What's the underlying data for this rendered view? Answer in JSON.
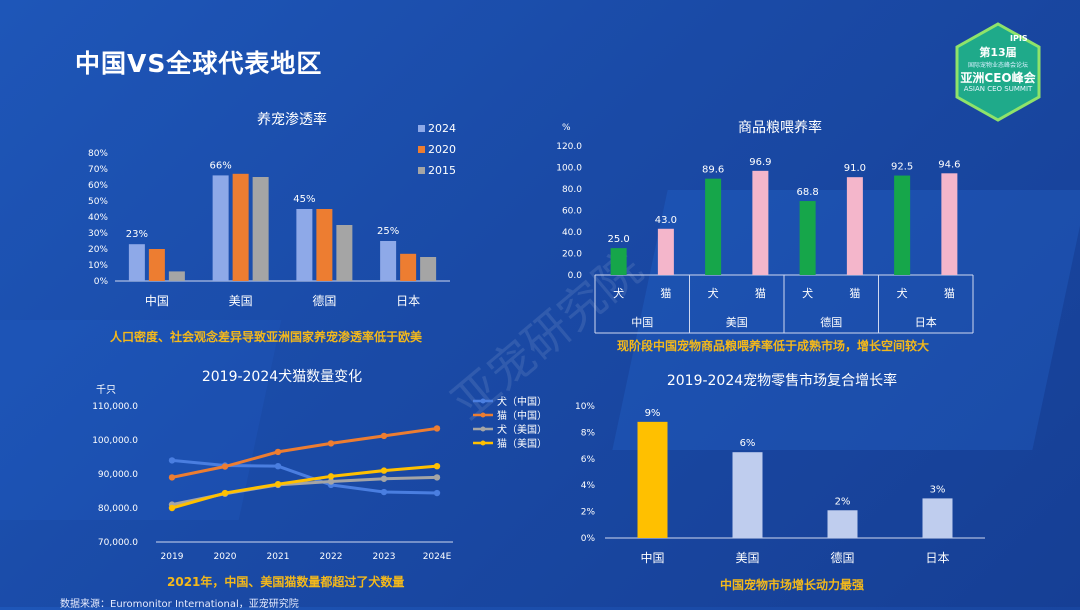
{
  "page": {
    "title": "中国VS全球代表地区",
    "logo": {
      "brand": "IPIS",
      "line1": "第13届",
      "line2": "国际宠物业态峰会论坛",
      "line3": "亚洲CEO峰会",
      "line4": "ASIAN CEO SUMMIT"
    },
    "watermark": "亚宠研究院",
    "source": "数据来源：Euromonitor International，亚宠研究院"
  },
  "colors": {
    "c2024": "#8ea9e8",
    "c2020": "#ed7d31",
    "c2015": "#a5a5a5",
    "dog": "#16a64a",
    "cat": "#f4b6cb",
    "yellow": "#ffc000",
    "lightblue": "#bfcdee",
    "note": "#f3b81b"
  },
  "chart_data": [
    {
      "id": "penetration",
      "type": "bar",
      "title": "养宠渗透率",
      "categories": [
        "中国",
        "美国",
        "德国",
        "日本"
      ],
      "series": [
        {
          "name": "2024",
          "values": [
            23,
            66,
            45,
            25
          ]
        },
        {
          "name": "2020",
          "values": [
            20,
            67,
            45,
            17
          ]
        },
        {
          "name": "2015",
          "values": [
            6,
            65,
            35,
            15
          ]
        }
      ],
      "data_labels": [
        "23%",
        "66%",
        "45%",
        "25%"
      ],
      "ylim": [
        0,
        80
      ],
      "yticks": [
        "0%",
        "10%",
        "20%",
        "30%",
        "40%",
        "50%",
        "60%",
        "70%",
        "80%"
      ],
      "legend": "top-right",
      "note": "人口密度、社会观念差异导致亚洲国家养宠渗透率低于欧美"
    },
    {
      "id": "feeding",
      "type": "bar",
      "title": "商品粮喂养率",
      "unit": "%",
      "groups": [
        "中国",
        "美国",
        "德国",
        "日本"
      ],
      "subcategories": [
        "犬",
        "猫"
      ],
      "values": [
        [
          25.0,
          43.0
        ],
        [
          89.6,
          96.9
        ],
        [
          68.8,
          91.0
        ],
        [
          92.5,
          94.6
        ]
      ],
      "labels": [
        [
          "25.0",
          "43.0"
        ],
        [
          "89.6",
          "96.9"
        ],
        [
          "68.8",
          "91.0"
        ],
        [
          "92.5",
          "94.6"
        ]
      ],
      "ylim": [
        0,
        120
      ],
      "yticks": [
        "0.0",
        "20.0",
        "40.0",
        "60.0",
        "80.0",
        "100.0",
        "120.0"
      ],
      "note": "现阶段中国宠物商品粮喂养率低于成熟市场，增长空间较大"
    },
    {
      "id": "population",
      "type": "line",
      "title": "2019-2024犬猫数量变化",
      "ylabel": "千只",
      "x": [
        "2019",
        "2020",
        "2021",
        "2022",
        "2023",
        "2024E"
      ],
      "series": [
        {
          "name": "犬（中国）",
          "values": [
            94000,
            92500,
            92300,
            86800,
            84700,
            84400
          ]
        },
        {
          "name": "猫（中国）",
          "values": [
            89000,
            92200,
            96500,
            99000,
            101200,
            103400
          ]
        },
        {
          "name": "犬（美国）",
          "values": [
            81000,
            84200,
            86800,
            87800,
            88600,
            89000
          ]
        },
        {
          "name": "猫（美国）",
          "values": [
            80000,
            84400,
            87000,
            89300,
            91000,
            92300
          ]
        }
      ],
      "ylim": [
        70000,
        110000
      ],
      "yticks": [
        "70,000.0",
        "80,000.0",
        "90,000.0",
        "100,000.0",
        "110,000.0"
      ],
      "legend": "right",
      "note": "2021年，中国、美国猫数量都超过了犬数量"
    },
    {
      "id": "cagr",
      "type": "bar",
      "title": "2019-2024宠物零售市场复合增长率",
      "categories": [
        "中国",
        "美国",
        "德国",
        "日本"
      ],
      "values": [
        8.8,
        6.5,
        2.1,
        3.0
      ],
      "data_labels": [
        "9%",
        "6%",
        "2%",
        "3%"
      ],
      "ylim": [
        0,
        10
      ],
      "yticks": [
        "0%",
        "2%",
        "4%",
        "6%",
        "8%",
        "10%"
      ],
      "note": "中国宠物市场增长动力最强"
    }
  ]
}
